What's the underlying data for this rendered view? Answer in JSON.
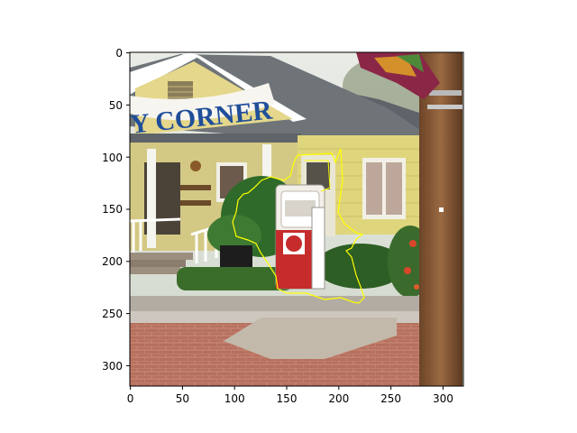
{
  "image": {
    "description": "",
    "sign_text": "Y CORNER",
    "overlay_color": "#ffff00"
  },
  "axes": {
    "x_ticks": [
      "0",
      "50",
      "100",
      "150",
      "200",
      "250",
      "300"
    ],
    "y_ticks": [
      "0",
      "50",
      "100",
      "150",
      "200",
      "250",
      "300"
    ],
    "frame_color": "#000000"
  }
}
